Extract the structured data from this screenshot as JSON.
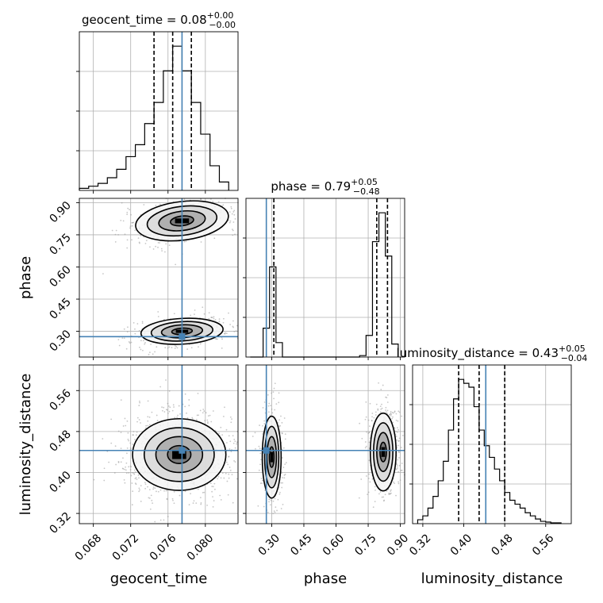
{
  "chart_data": {
    "type": "corner",
    "truth_color": "#4682b4",
    "grid": true,
    "parameters": [
      {
        "name": "geocent_time",
        "axis_label": "geocent_time",
        "range": [
          0.0665,
          0.0835
        ],
        "ticks": [
          "0.068",
          "0.072",
          "0.076",
          "0.080"
        ],
        "truth": 0.0775,
        "title": {
          "prefix": "geocent_time = 0.08",
          "upper": "+0.00",
          "lower": "−0.00"
        }
      },
      {
        "name": "phase",
        "axis_label": "phase",
        "range": [
          0.18,
          0.92
        ],
        "ticks": [
          "0.30",
          "0.45",
          "0.60",
          "0.75",
          "0.90"
        ],
        "truth": 0.275,
        "title": {
          "prefix": "phase = 0.79",
          "upper": "+0.05",
          "lower": "−0.48"
        }
      },
      {
        "name": "luminosity_distance",
        "axis_label": "luminosity_distance",
        "range": [
          0.3,
          0.61
        ],
        "ticks": [
          "0.32",
          "0.40",
          "0.48",
          "0.56"
        ],
        "truth": 0.443,
        "title": {
          "prefix": "luminosity_distance = 0.43",
          "upper": "+0.05",
          "lower": "−0.04"
        }
      }
    ],
    "histograms": [
      {
        "parameter": "geocent_time",
        "bins": [
          0.0665,
          0.0675,
          0.0685,
          0.0695,
          0.0705,
          0.0715,
          0.0725,
          0.0735,
          0.0745,
          0.0755,
          0.0765,
          0.0775,
          0.0785,
          0.0795,
          0.0805,
          0.0815,
          0.0825
        ],
        "counts": [
          3,
          6,
          10,
          18,
          30,
          48,
          65,
          95,
          125,
          170,
          205,
          170,
          125,
          80,
          35,
          12
        ],
        "quantiles": [
          0.0745,
          0.0765,
          0.0785
        ]
      },
      {
        "parameter": "phase",
        "bins": [
          0.2,
          0.23,
          0.26,
          0.29,
          0.32,
          0.35,
          0.38,
          0.41,
          0.44,
          0.47,
          0.5,
          0.53,
          0.56,
          0.59,
          0.62,
          0.65,
          0.68,
          0.71,
          0.74,
          0.77,
          0.8,
          0.83,
          0.86,
          0.89
        ],
        "counts": [
          0,
          0,
          40,
          125,
          20,
          0,
          0,
          0,
          0,
          0,
          0,
          0,
          0,
          0,
          0,
          0,
          0,
          2,
          30,
          160,
          200,
          140,
          18
        ],
        "quantiles": [
          0.31,
          0.79,
          0.84
        ]
      },
      {
        "parameter": "luminosity_distance",
        "bins": [
          0.31,
          0.32,
          0.33,
          0.34,
          0.35,
          0.36,
          0.37,
          0.38,
          0.39,
          0.4,
          0.41,
          0.42,
          0.43,
          0.44,
          0.45,
          0.46,
          0.47,
          0.48,
          0.49,
          0.5,
          0.51,
          0.52,
          0.53,
          0.54,
          0.55,
          0.56,
          0.57,
          0.58,
          0.59
        ],
        "counts": [
          5,
          10,
          20,
          35,
          55,
          80,
          120,
          160,
          185,
          180,
          175,
          150,
          120,
          100,
          85,
          70,
          55,
          40,
          30,
          25,
          20,
          14,
          10,
          6,
          3,
          2,
          1,
          1
        ],
        "quantiles": [
          0.39,
          0.43,
          0.48
        ]
      }
    ],
    "densities": [
      {
        "x": "geocent_time",
        "y": "phase",
        "modes": [
          {
            "cx": 0.0775,
            "cy": 0.815,
            "sx": 0.0025,
            "sy": 0.045,
            "weight": 0.55,
            "rho": 0.5
          },
          {
            "cx": 0.0775,
            "cy": 0.3,
            "sx": 0.0022,
            "sy": 0.03,
            "weight": 0.45,
            "rho": 0.3
          }
        ]
      },
      {
        "x": "geocent_time",
        "y": "luminosity_distance",
        "modes": [
          {
            "cx": 0.0772,
            "cy": 0.435,
            "sx": 0.0025,
            "sy": 0.035,
            "weight": 1.0,
            "rho": 0.0
          }
        ]
      },
      {
        "x": "phase",
        "y": "luminosity_distance",
        "modes": [
          {
            "cx": 0.3,
            "cy": 0.43,
            "sx": 0.022,
            "sy": 0.04,
            "weight": 0.4,
            "rho": 0.0
          },
          {
            "cx": 0.82,
            "cy": 0.44,
            "sx": 0.03,
            "sy": 0.038,
            "weight": 0.6,
            "rho": 0.0
          }
        ]
      }
    ]
  }
}
